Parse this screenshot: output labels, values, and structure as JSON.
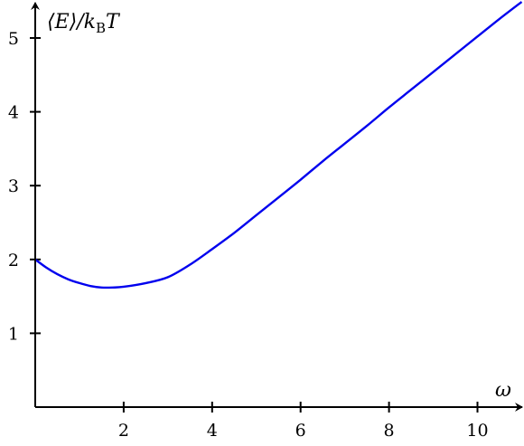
{
  "chart_data": {
    "type": "line",
    "title": "",
    "xlabel": "ω",
    "ylabel": "⟨E⟩/k_B T",
    "ylabel_parts": {
      "main": "⟨E⟩/k",
      "sub": "B",
      "tail": "T"
    },
    "xlim": [
      0,
      11
    ],
    "ylim": [
      0,
      5.5
    ],
    "x_ticks": [
      2,
      4,
      6,
      8,
      10
    ],
    "y_ticks": [
      1,
      2,
      3,
      4,
      5
    ],
    "grid": false,
    "series": [
      {
        "color": "#0000ee",
        "x": [
          0,
          0.25,
          0.5,
          0.75,
          1,
          1.25,
          1.5,
          1.75,
          2,
          2.5,
          3,
          3.5,
          4,
          4.5,
          5,
          5.5,
          6,
          6.5,
          7,
          7.5,
          8,
          8.5,
          9,
          9.5,
          10,
          10.5,
          11
        ],
        "y": [
          2.0,
          1.89,
          1.8,
          1.73,
          1.68,
          1.64,
          1.62,
          1.62,
          1.63,
          1.68,
          1.76,
          1.93,
          2.14,
          2.36,
          2.6,
          2.84,
          3.08,
          3.33,
          3.57,
          3.81,
          4.06,
          4.3,
          4.54,
          4.78,
          5.02,
          5.26,
          5.49
        ]
      }
    ]
  }
}
